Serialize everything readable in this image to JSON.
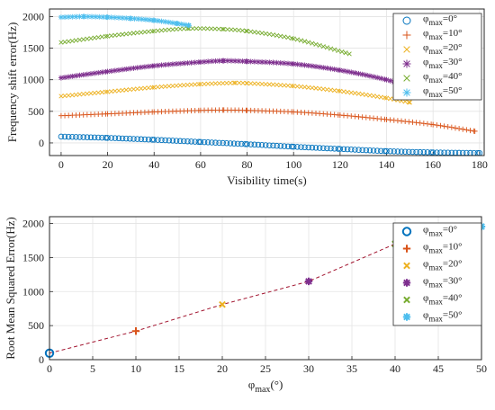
{
  "chart_data": [
    {
      "type": "scatter",
      "xlabel": "Visibility time(s)",
      "ylabel": "Frequency shift error(Hz)",
      "xlim": [
        -5,
        182
      ],
      "ylim": [
        -200,
        2120
      ],
      "xticks": [
        0,
        20,
        40,
        60,
        80,
        100,
        120,
        140,
        160,
        180
      ],
      "yticks": [
        0,
        500,
        1000,
        1500,
        2000
      ],
      "grid": true,
      "legend": {
        "position": "top-right",
        "prefix": "φ",
        "subscript": "max",
        "suffixes": [
          "=0°",
          "=10°",
          "=20°",
          "=30°",
          "=40°",
          "=50°"
        ]
      },
      "series": [
        {
          "phi_max_deg": 0,
          "marker": "circle",
          "color": "#0072BD",
          "x": [
            0,
            20,
            40,
            60,
            80,
            100,
            120,
            140,
            160,
            180
          ],
          "y": [
            100,
            80,
            50,
            15,
            -20,
            -60,
            -95,
            -130,
            -150,
            -160
          ]
        },
        {
          "phi_max_deg": 10,
          "marker": "plus",
          "color": "#D95319",
          "x": [
            0,
            20,
            40,
            60,
            70,
            80,
            100,
            120,
            140,
            160,
            178
          ],
          "y": [
            430,
            460,
            490,
            515,
            520,
            515,
            490,
            440,
            370,
            290,
            185
          ]
        },
        {
          "phi_max_deg": 20,
          "marker": "x",
          "color": "#EDB120",
          "x": [
            0,
            20,
            40,
            60,
            75,
            80,
            100,
            120,
            140,
            150
          ],
          "y": [
            740,
            810,
            880,
            930,
            950,
            945,
            900,
            820,
            710,
            640
          ]
        },
        {
          "phi_max_deg": 30,
          "marker": "asterisk",
          "color": "#7E2F8E",
          "x": [
            0,
            20,
            40,
            60,
            70,
            80,
            100,
            120,
            140,
            149
          ],
          "y": [
            1030,
            1130,
            1220,
            1280,
            1300,
            1290,
            1250,
            1150,
            1000,
            890
          ]
        },
        {
          "phi_max_deg": 40,
          "marker": "x",
          "color": "#77AC30",
          "x": [
            0,
            20,
            40,
            55,
            70,
            80,
            100,
            124
          ],
          "y": [
            1590,
            1690,
            1770,
            1810,
            1800,
            1770,
            1650,
            1410
          ]
        },
        {
          "phi_max_deg": 50,
          "marker": "asterisk",
          "color": "#4DBEEE",
          "x": [
            0,
            10,
            20,
            30,
            40,
            50,
            55
          ],
          "y": [
            1990,
            2000,
            1990,
            1970,
            1940,
            1890,
            1860
          ]
        }
      ]
    },
    {
      "type": "line",
      "xlabel": "φmax(°)",
      "ylabel": "Root Mean Squared Error(Hz)",
      "xlim": [
        0,
        50
      ],
      "ylim": [
        0,
        2100
      ],
      "xticks": [
        0,
        5,
        10,
        15,
        20,
        25,
        30,
        35,
        40,
        45,
        50
      ],
      "yticks": [
        0,
        500,
        1000,
        1500,
        2000
      ],
      "grid": true,
      "line_color": "#A2142F",
      "line_style": "dashed",
      "legend": {
        "position": "top-right",
        "prefix": "φ",
        "subscript": "max",
        "suffixes": [
          "=0°",
          "=10°",
          "=20°",
          "=30°",
          "=40°",
          "=50°"
        ]
      },
      "x": [
        0,
        10,
        20,
        30,
        40,
        50
      ],
      "y": [
        95,
        420,
        810,
        1150,
        1700,
        1955
      ],
      "markers": [
        "circle",
        "plus",
        "x",
        "asterisk",
        "x",
        "asterisk"
      ],
      "colors": [
        "#0072BD",
        "#D95319",
        "#EDB120",
        "#7E2F8E",
        "#77AC30",
        "#4DBEEE"
      ]
    }
  ]
}
